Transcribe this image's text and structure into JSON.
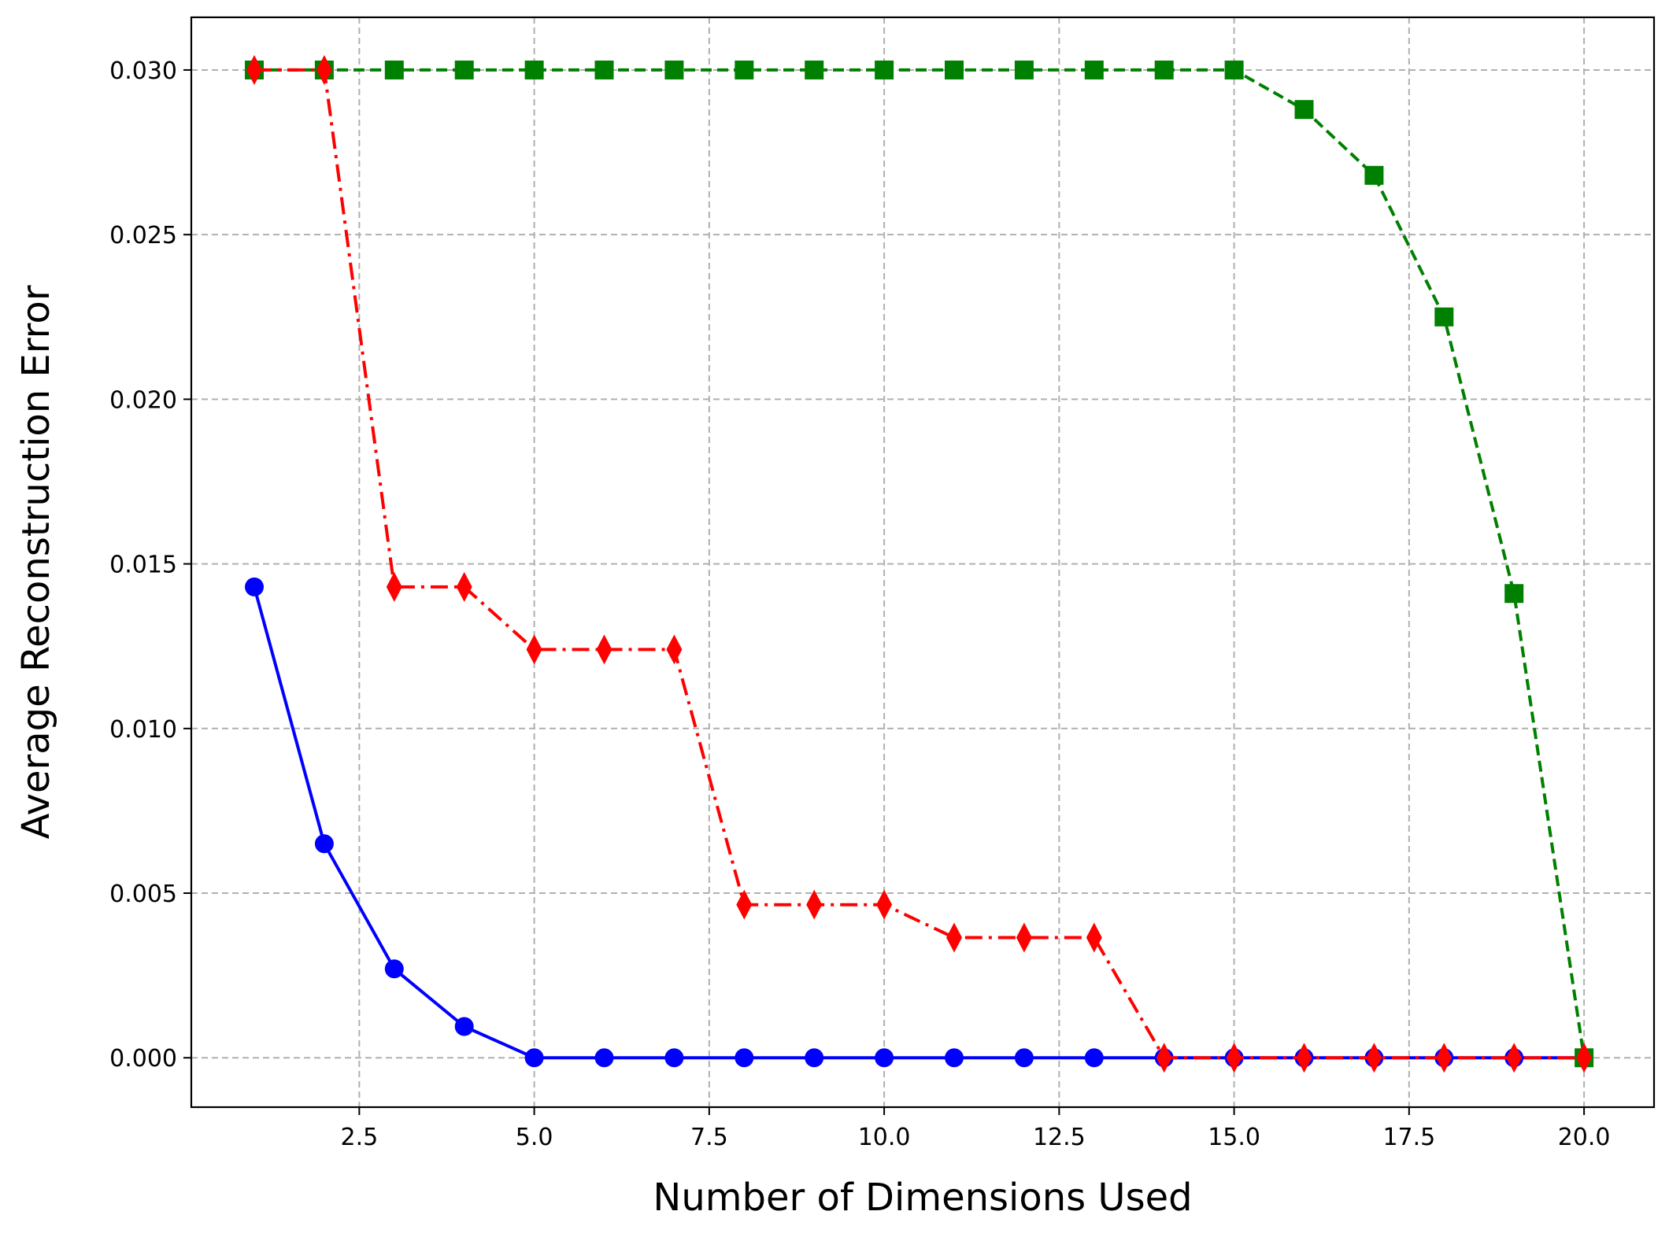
{
  "chart_data": {
    "type": "line",
    "title": "",
    "xlabel": "Number of Dimensions Used",
    "ylabel": "Average Reconstruction Error",
    "xlim": [
      0.1,
      21.0
    ],
    "ylim": [
      -0.0015,
      0.0316
    ],
    "grid": true,
    "x": [
      1,
      2,
      3,
      4,
      5,
      6,
      7,
      8,
      9,
      10,
      11,
      12,
      13,
      14,
      15,
      16,
      17,
      18,
      19,
      20
    ],
    "x_ticks": [
      "2.5",
      "5.0",
      "7.5",
      "10.0",
      "12.5",
      "15.0",
      "17.5",
      "20.0"
    ],
    "x_tick_values": [
      2.5,
      5.0,
      7.5,
      10.0,
      12.5,
      15.0,
      17.5,
      20.0
    ],
    "y_ticks": [
      "0.000",
      "0.005",
      "0.010",
      "0.015",
      "0.020",
      "0.025",
      "0.030"
    ],
    "y_tick_values": [
      0.0,
      0.005,
      0.01,
      0.015,
      0.02,
      0.025,
      0.03
    ],
    "series": [
      {
        "color": "#0000ff",
        "marker": "circle",
        "linestyle": "solid",
        "values": [
          0.0143,
          0.0065,
          0.0027,
          0.00095,
          0.0,
          0.0,
          0.0,
          0.0,
          0.0,
          0.0,
          0.0,
          0.0,
          0.0,
          0.0,
          0.0,
          0.0,
          0.0,
          0.0,
          0.0,
          0.0
        ]
      },
      {
        "color": "#008000",
        "marker": "square",
        "linestyle": "dashed",
        "values": [
          0.03,
          0.03,
          0.03,
          0.03,
          0.03,
          0.03,
          0.03,
          0.03,
          0.03,
          0.03,
          0.03,
          0.03,
          0.03,
          0.03,
          0.03,
          0.0288,
          0.0268,
          0.0225,
          0.0141,
          0.0
        ]
      },
      {
        "color": "#ff0000",
        "marker": "diamond",
        "linestyle": "dashdot",
        "values": [
          0.03,
          0.03,
          0.0143,
          0.0143,
          0.0124,
          0.0124,
          0.0124,
          0.00465,
          0.00465,
          0.00465,
          0.00365,
          0.00365,
          0.00365,
          0.0,
          0.0,
          0.0,
          0.0,
          0.0,
          0.0,
          0.0
        ]
      }
    ]
  }
}
